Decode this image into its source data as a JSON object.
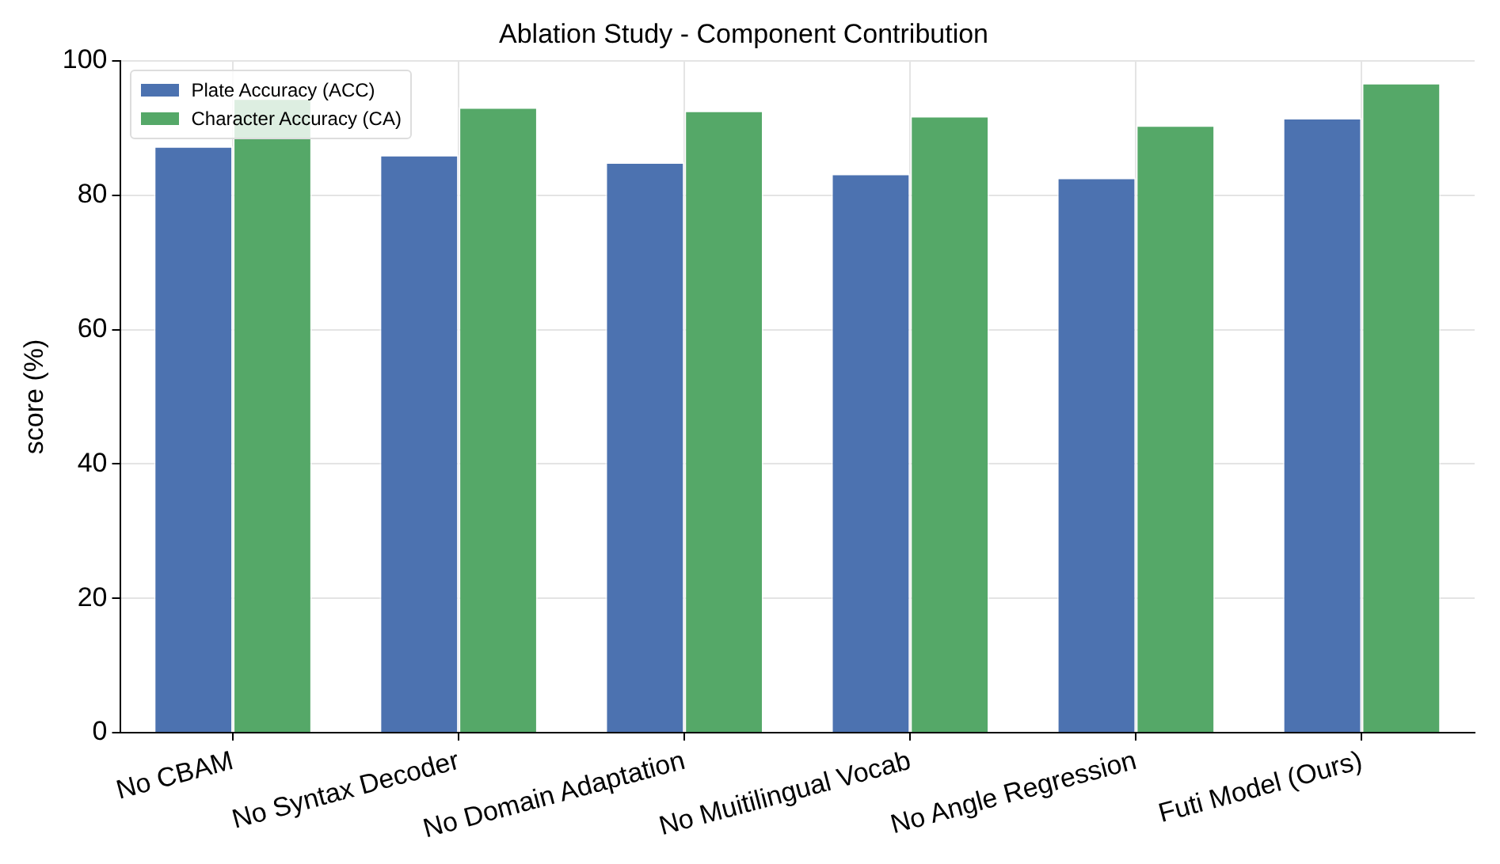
{
  "chart_data": {
    "type": "bar",
    "title": "Ablation Study - Component Contribution",
    "ylabel": "score (%)",
    "categories": [
      "No CBAM",
      "No Syntax Decoder",
      "No Domain Adaptation",
      "No Muitilingual Vocab",
      "No Angle Regression",
      "Futi Model (Ours)"
    ],
    "series": [
      {
        "name": "Plate Accuracy (ACC)",
        "color": "#4c72b0",
        "values": [
          87.3,
          86.0,
          84.9,
          83.2,
          82.6,
          91.5
        ]
      },
      {
        "name": "Character Accuracy (CA)",
        "color": "#55a868",
        "values": [
          94.4,
          93.1,
          92.6,
          91.8,
          90.4,
          96.7
        ]
      }
    ],
    "ylim": [
      0,
      100
    ],
    "yticks": [
      0,
      20,
      40,
      60,
      80,
      100
    ],
    "grid": true,
    "legend": "top left"
  }
}
